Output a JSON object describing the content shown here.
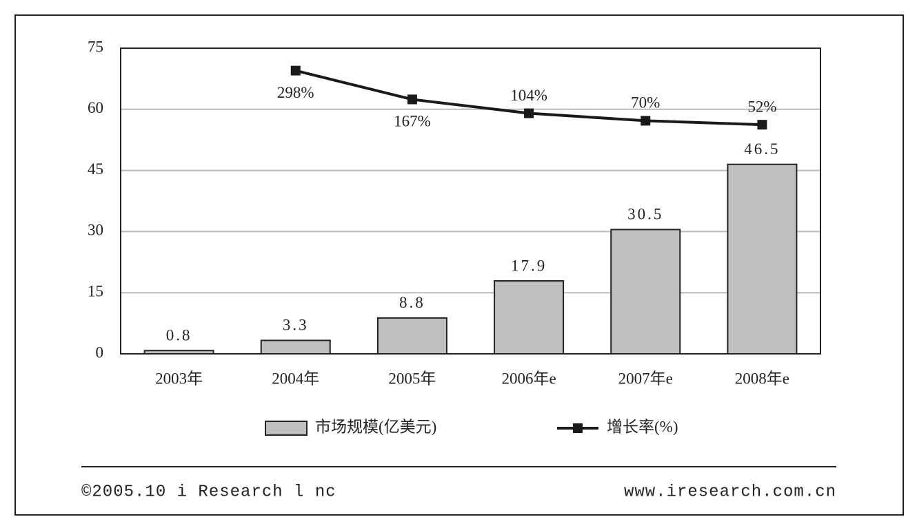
{
  "chart_data": {
    "type": "bar",
    "categories": [
      "2003年",
      "2004年",
      "2005年",
      "2006年e",
      "2007年e",
      "2008年e"
    ],
    "series": [
      {
        "name": "市场规模(亿美元)",
        "type": "bar",
        "color": "#bfbfbf",
        "values": [
          0.8,
          3.3,
          8.8,
          17.9,
          30.5,
          46.5
        ]
      },
      {
        "name": "增长率(%)",
        "type": "line",
        "color": "#1a1a1a",
        "axis": "y2",
        "values": [
          null,
          298,
          167,
          104,
          70,
          52
        ],
        "value_labels": [
          null,
          "298%",
          "167%",
          "104%",
          "70%",
          "52%"
        ]
      }
    ],
    "ylim": [
      0,
      75
    ],
    "yticks": [
      0,
      15,
      30,
      45,
      60,
      75
    ],
    "y2lim": [
      -990,
      400
    ],
    "grid": true,
    "footer_left": "©2005.10 i Research l nc",
    "footer_right": "www.iresearch.com.cn"
  }
}
